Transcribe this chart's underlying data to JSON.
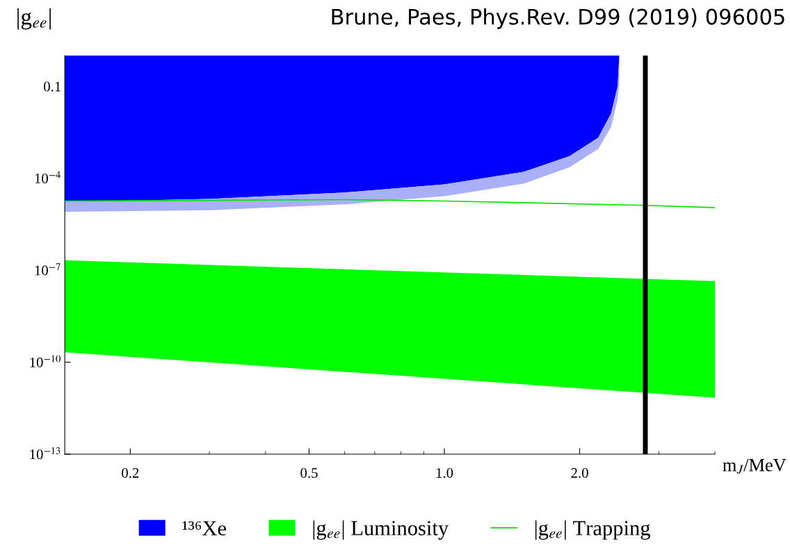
{
  "chart_data": {
    "type": "area",
    "title": "Brune, Paes, Phys.Rev. D99 (2019) 096005",
    "ylabel": "|g$_{ee}$|",
    "xlabel": "m$_{J}$/MeV",
    "log": "xy",
    "xlim": [
      0.143,
      4.0
    ],
    "ylim": [
      1e-13,
      1
    ],
    "xticks": [
      0.2,
      0.5,
      {
        "value": 1.0,
        "label": "1.0"
      },
      {
        "value": 2.0,
        "label": "2.0"
      }
    ],
    "yticks": [
      {
        "value": 1e-13,
        "label": "10$^{−13}$"
      },
      {
        "value": 1e-10,
        "label": "10$^{−10}$"
      },
      {
        "value": 1e-07,
        "label": "10$^{−7}$"
      },
      {
        "value": 0.0001,
        "label": "10$^{−4}$"
      },
      0.1
    ],
    "grid": false,
    "legend": "bottom",
    "series": [
      {
        "name": "¹³⁶Xe",
        "color": "#0000ff",
        "x": [
          0.143,
          0.3,
          0.6,
          1.0,
          1.5,
          1.9,
          2.2,
          2.35,
          2.43,
          2.45
        ],
        "values": [
          null,
          null,
          null,
          null,
          null,
          null,
          null,
          null,
          null,
          null
        ],
        "lower": [
          1.7e-05,
          2.1e-05,
          3.4e-05,
          6.3e-05,
          0.00016,
          0.00053,
          0.0021,
          0.013,
          0.1,
          1
        ],
        "upper": [
          1,
          1,
          1,
          1,
          1,
          1,
          1,
          1,
          1,
          1
        ]
      },
      {
        "color": "#aab0f8",
        "x": [
          0.143,
          0.3,
          0.6,
          1.0,
          1.5,
          1.9,
          2.2,
          2.35,
          2.43,
          2.45
        ],
        "values": [
          null,
          null,
          null,
          null,
          null,
          null,
          null,
          null,
          null,
          null
        ],
        "lower": [
          8e-06,
          9e-06,
          1.4e-05,
          2.6e-05,
          6.6e-05,
          0.00023,
          0.0009,
          0.0047,
          0.037,
          0.13
        ],
        "upper": [
          1.7e-05,
          2.1e-05,
          3.4e-05,
          6.3e-05,
          0.00016,
          0.00053,
          0.0021,
          0.013,
          0.1,
          1
        ]
      },
      {
        "name": "|g$_{ee}$| Luminosity",
        "color": "#00ff00",
        "x": [
          0.143,
          4.0
        ],
        "values": [
          null,
          null
        ],
        "lower": [
          2.1e-10,
          6.9e-12
        ],
        "upper": [
          2.1e-07,
          4.4e-08
        ]
      },
      {
        "name": "|g$_{ee}$| Trapping",
        "type": "line",
        "color": "#00e000",
        "x": [
          0.143,
          0.6,
          1.0,
          2.8,
          4.0
        ],
        "values": [
          1.8e-05,
          2e-05,
          1.8e-05,
          1.3e-05,
          1.1e-05
        ]
      }
    ],
    "ref_lines": [
      {
        "axis": "x",
        "value": 2.8,
        "color": "#000000"
      }
    ]
  }
}
